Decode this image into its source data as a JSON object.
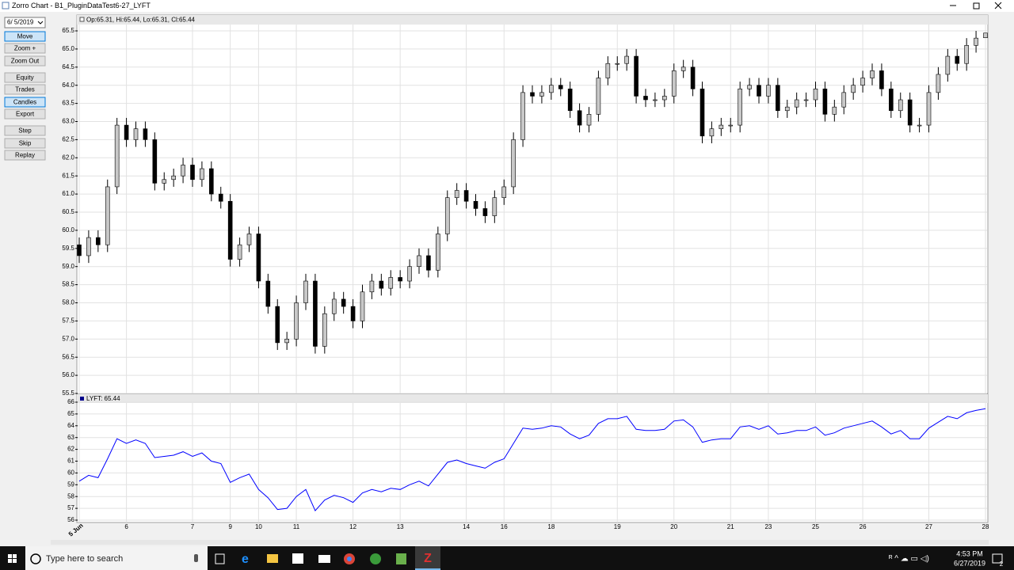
{
  "window": {
    "title": "Zorro Chart - B1_PluginDataTest6-27_LYFT"
  },
  "panel": {
    "date": "6/ 5/2019",
    "buttons": [
      "Move",
      "Zoom +",
      "Zoom Out",
      "Equity",
      "Trades",
      "Candles",
      "Export",
      "Step",
      "Skip",
      "Replay"
    ]
  },
  "taskbar": {
    "search": "Type here to search",
    "time": "4:53 PM",
    "date": "6/27/2019",
    "notifications": "2"
  },
  "chart_data": [
    {
      "type": "candlestick",
      "title": "Op:65.31, Hi:65.44, Lo:65.31, Cl:65.44",
      "up_color": "#c8c8c8",
      "down_color": "#000000",
      "grid": true,
      "ylim": [
        55.5,
        65.5
      ],
      "yticks": [
        55.5,
        {
          "value": 56,
          "label": "56.0"
        },
        56.5,
        {
          "value": 57,
          "label": "57.0"
        },
        57.5,
        {
          "value": 58,
          "label": "58.0"
        },
        58.5,
        {
          "value": 59,
          "label": "59.0"
        },
        59.5,
        {
          "value": 60,
          "label": "60.0"
        },
        60.5,
        {
          "value": 61,
          "label": "61.0"
        },
        61.5,
        {
          "value": 62,
          "label": "62.0"
        },
        62.5,
        {
          "value": 63,
          "label": "63.0"
        },
        63.5,
        {
          "value": 64,
          "label": "64.0"
        },
        64.5,
        {
          "value": 65,
          "label": "65.0"
        },
        65.5
      ],
      "open": [
        59.6,
        59.3,
        59.8,
        59.6,
        61.2,
        62.9,
        62.5,
        62.8,
        62.5,
        61.3,
        61.4,
        61.5,
        61.8,
        61.4,
        61.7,
        61.0,
        60.8,
        59.2,
        59.6,
        59.9,
        58.6,
        57.9,
        56.9,
        57.0,
        58.0,
        58.6,
        56.8,
        57.7,
        58.1,
        57.9,
        57.5,
        58.3,
        58.6,
        58.4,
        58.7,
        58.6,
        59.0,
        59.3,
        58.9,
        59.9,
        60.9,
        61.1,
        60.8,
        60.6,
        60.4,
        60.9,
        61.2,
        62.5,
        63.8,
        63.7,
        63.8,
        64.0,
        63.9,
        63.3,
        62.9,
        63.2,
        64.2,
        64.6,
        64.6,
        64.8,
        63.7,
        63.6,
        63.6,
        63.7,
        64.4,
        64.5,
        63.9,
        62.6,
        62.8,
        62.9,
        62.9,
        63.9,
        64.0,
        63.7,
        64.0,
        63.3,
        63.4,
        63.6,
        63.6,
        63.9,
        63.2,
        63.4,
        63.8,
        64.0,
        64.2,
        64.4,
        63.9,
        63.3,
        63.6,
        62.9,
        62.9,
        63.8,
        64.3,
        64.8,
        64.6,
        65.1,
        65.31
      ],
      "high": [
        59.8,
        60.0,
        60.0,
        61.4,
        63.1,
        63.1,
        63.0,
        63.0,
        62.7,
        61.6,
        61.7,
        62.0,
        62.0,
        61.9,
        61.9,
        61.2,
        61.0,
        59.8,
        60.1,
        60.1,
        58.8,
        58.1,
        57.2,
        58.2,
        58.8,
        58.8,
        57.9,
        58.3,
        58.3,
        58.1,
        58.5,
        58.8,
        58.8,
        58.9,
        58.9,
        59.2,
        59.5,
        59.5,
        60.1,
        61.1,
        61.3,
        61.3,
        61.0,
        60.8,
        61.1,
        61.4,
        62.7,
        64.0,
        64.0,
        64.0,
        64.2,
        64.2,
        64.1,
        63.5,
        63.4,
        64.4,
        64.8,
        64.8,
        65.0,
        65.0,
        63.9,
        63.8,
        63.9,
        64.6,
        64.7,
        64.7,
        64.1,
        63.0,
        63.1,
        63.1,
        64.1,
        64.2,
        64.2,
        64.2,
        64.2,
        63.6,
        63.8,
        63.8,
        64.1,
        64.1,
        63.6,
        64.0,
        64.2,
        64.4,
        64.6,
        64.6,
        64.1,
        63.8,
        63.8,
        63.1,
        64.0,
        64.5,
        65.0,
        65.0,
        65.3,
        65.5,
        65.44
      ],
      "low": [
        59.1,
        59.1,
        59.4,
        59.4,
        61.0,
        62.3,
        62.3,
        62.3,
        61.1,
        61.1,
        61.2,
        61.3,
        61.2,
        61.2,
        60.8,
        60.6,
        59.0,
        59.0,
        59.4,
        58.4,
        57.7,
        56.7,
        56.7,
        56.8,
        57.8,
        56.6,
        56.6,
        57.5,
        57.7,
        57.3,
        57.3,
        58.1,
        58.2,
        58.2,
        58.4,
        58.4,
        58.8,
        58.7,
        58.7,
        59.7,
        60.7,
        60.6,
        60.4,
        60.2,
        60.2,
        60.7,
        61.0,
        62.3,
        63.5,
        63.5,
        63.6,
        63.7,
        63.1,
        62.7,
        62.7,
        63.0,
        64.0,
        64.4,
        64.4,
        63.5,
        63.4,
        63.4,
        63.4,
        63.5,
        64.2,
        63.7,
        62.4,
        62.4,
        62.6,
        62.7,
        62.7,
        63.7,
        63.5,
        63.5,
        63.1,
        63.1,
        63.2,
        63.4,
        63.4,
        63.0,
        63.0,
        63.2,
        63.6,
        63.8,
        64.0,
        63.7,
        63.1,
        63.1,
        62.7,
        62.7,
        62.7,
        63.6,
        64.1,
        64.4,
        64.4,
        64.9,
        65.31
      ],
      "close": [
        59.3,
        59.8,
        59.6,
        61.2,
        62.9,
        62.5,
        62.8,
        62.5,
        61.3,
        61.4,
        61.5,
        61.8,
        61.4,
        61.7,
        61.0,
        60.8,
        59.2,
        59.6,
        59.9,
        58.6,
        57.9,
        56.9,
        57.0,
        58.0,
        58.6,
        56.8,
        57.7,
        58.1,
        57.9,
        57.5,
        58.3,
        58.6,
        58.4,
        58.7,
        58.6,
        59.0,
        59.3,
        58.9,
        59.9,
        60.9,
        61.1,
        60.8,
        60.6,
        60.4,
        60.9,
        61.2,
        62.5,
        63.8,
        63.7,
        63.8,
        64.0,
        63.9,
        63.3,
        62.9,
        63.2,
        64.2,
        64.6,
        64.6,
        64.8,
        63.7,
        63.6,
        63.6,
        63.7,
        64.4,
        64.5,
        63.9,
        62.6,
        62.8,
        62.9,
        62.9,
        63.9,
        64.0,
        63.7,
        64.0,
        63.3,
        63.4,
        63.6,
        63.6,
        63.9,
        63.2,
        63.4,
        63.8,
        64.0,
        64.2,
        64.4,
        63.9,
        63.3,
        63.6,
        62.9,
        62.9,
        63.8,
        64.3,
        64.8,
        64.6,
        65.1,
        65.3,
        65.44
      ]
    },
    {
      "type": "line",
      "title": "LYFT: 65.44",
      "color": "#0000ff",
      "grid": true,
      "ylim": [
        56,
        66
      ],
      "yticks": [
        56,
        57,
        58,
        59,
        60,
        61,
        62,
        63,
        64,
        65,
        66
      ],
      "categories": [
        "5 Jun",
        null,
        null,
        null,
        null,
        "6",
        null,
        null,
        null,
        null,
        null,
        null,
        "7",
        null,
        null,
        null,
        "9",
        null,
        null,
        "10",
        null,
        null,
        null,
        "11",
        null,
        null,
        null,
        null,
        null,
        "12",
        null,
        null,
        null,
        null,
        "13",
        null,
        null,
        null,
        null,
        null,
        null,
        "14",
        null,
        null,
        null,
        "16",
        null,
        null,
        null,
        null,
        "18",
        null,
        null,
        null,
        null,
        null,
        null,
        "19",
        null,
        null,
        null,
        null,
        null,
        "20",
        null,
        null,
        null,
        null,
        null,
        "21",
        null,
        null,
        null,
        "23",
        null,
        null,
        null,
        null,
        "25",
        null,
        null,
        null,
        null,
        "26",
        null,
        null,
        null,
        null,
        null,
        null,
        "27",
        null,
        null,
        null,
        null,
        null,
        "28"
      ],
      "values": [
        59.3,
        59.8,
        59.6,
        61.2,
        62.9,
        62.5,
        62.8,
        62.5,
        61.3,
        61.4,
        61.5,
        61.8,
        61.4,
        61.7,
        61.0,
        60.8,
        59.2,
        59.6,
        59.9,
        58.6,
        57.9,
        56.9,
        57.0,
        58.0,
        58.6,
        56.8,
        57.7,
        58.1,
        57.9,
        57.5,
        58.3,
        58.6,
        58.4,
        58.7,
        58.6,
        59.0,
        59.3,
        58.9,
        59.9,
        60.9,
        61.1,
        60.8,
        60.6,
        60.4,
        60.9,
        61.2,
        62.5,
        63.8,
        63.7,
        63.8,
        64.0,
        63.9,
        63.3,
        62.9,
        63.2,
        64.2,
        64.6,
        64.6,
        64.8,
        63.7,
        63.6,
        63.6,
        63.7,
        64.4,
        64.5,
        63.9,
        62.6,
        62.8,
        62.9,
        62.9,
        63.9,
        64.0,
        63.7,
        64.0,
        63.3,
        63.4,
        63.6,
        63.6,
        63.9,
        63.2,
        63.4,
        63.8,
        64.0,
        64.2,
        64.4,
        63.9,
        63.3,
        63.6,
        62.9,
        62.9,
        63.8,
        64.3,
        64.8,
        64.6,
        65.1,
        65.3,
        65.44
      ]
    }
  ]
}
